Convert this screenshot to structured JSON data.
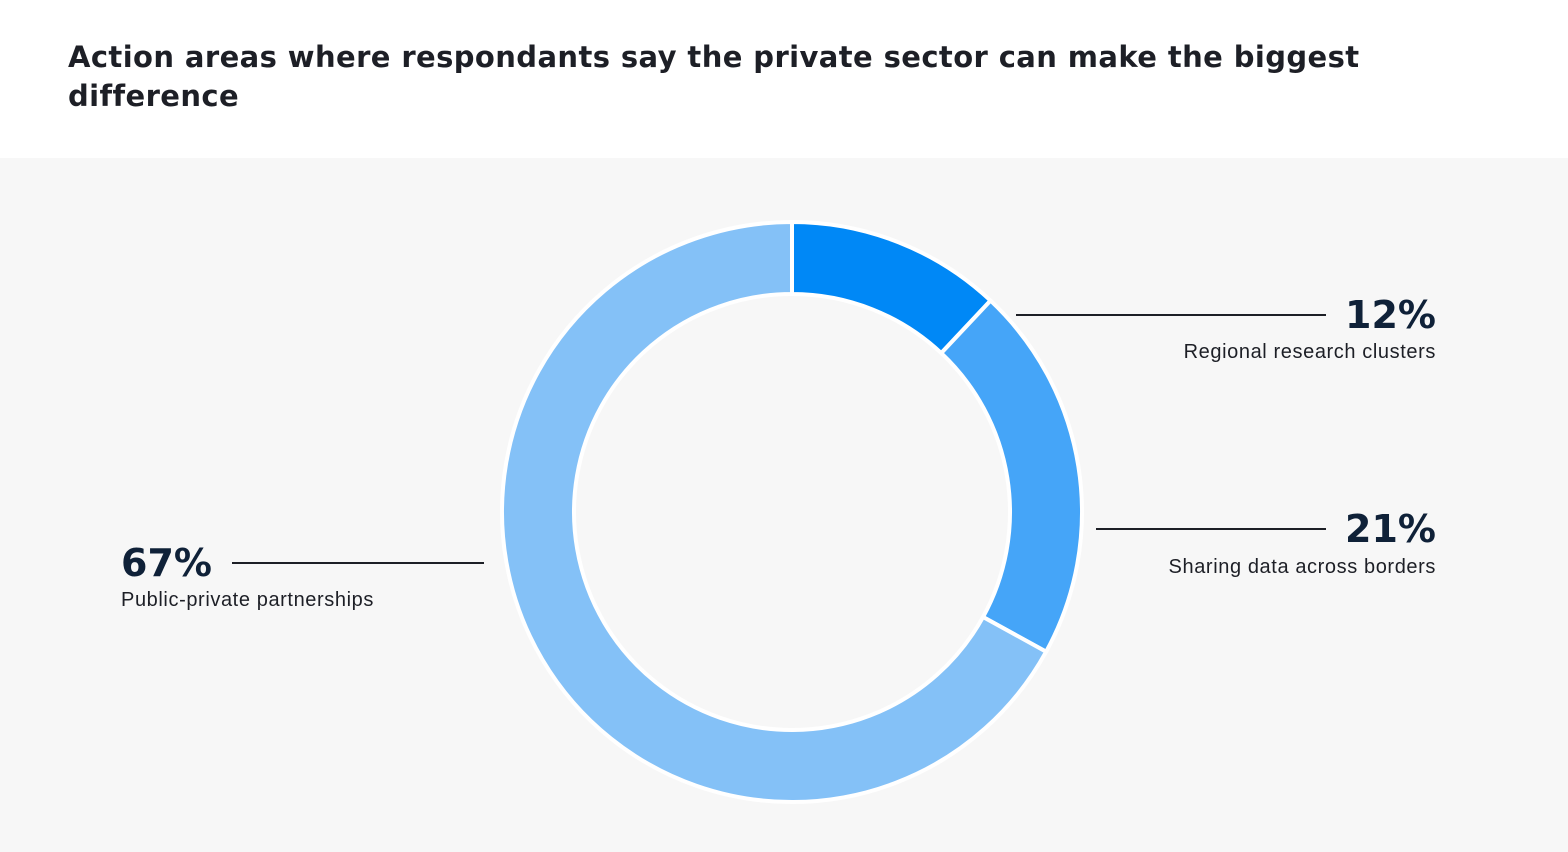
{
  "title": "Action areas where respondants say the private sector can make the biggest difference",
  "colors": {
    "background": "#f7f7f7",
    "title_text": "#1d1f26",
    "value_text": "#0f2138",
    "leader_line": "#1d1f26"
  },
  "chart_data": {
    "type": "pie",
    "variant": "donut",
    "title": "Action areas where respondants say the private sector can make the biggest difference",
    "legend": "none",
    "slices": [
      {
        "label": "Regional research clusters",
        "value": 12,
        "value_label": "12%",
        "color": "#0088f6"
      },
      {
        "label": "Sharing data across borders",
        "value": 21,
        "value_label": "21%",
        "color": "#45a5f8"
      },
      {
        "label": "Public-private partnerships",
        "value": 67,
        "value_label": "67%",
        "color": "#84c1f7"
      }
    ]
  }
}
